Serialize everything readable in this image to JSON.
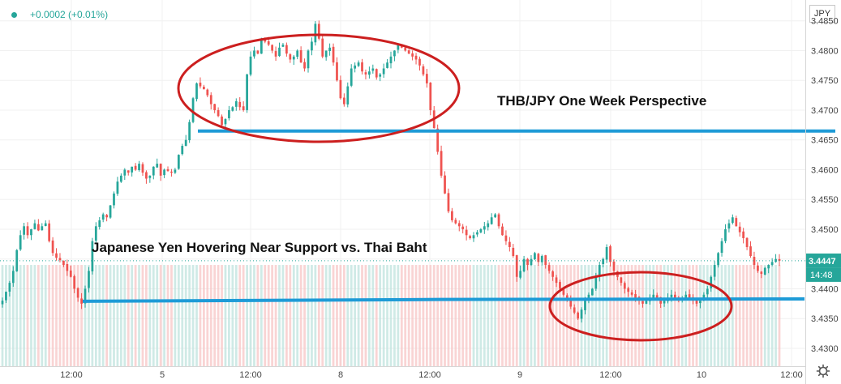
{
  "header": {
    "change_text": "+0.0002 (+0.01%)"
  },
  "axis": {
    "currency": "JPY",
    "countdown": "14:48"
  },
  "colors": {
    "up": "#26a69a",
    "down": "#ef5350",
    "support": "#1e9bd7",
    "ellipse": "#cc1f1f",
    "price_tag": "#26a69a"
  },
  "chart_data": {
    "type": "candlestick",
    "title": "THB/JPY One Week Perspective",
    "annotation": "Japanese Yen Hovering Near Support vs. Thai Baht",
    "y_ticks": [
      "3.4300",
      "3.4350",
      "3.4400",
      "3.4450",
      "3.4500",
      "3.4550",
      "3.4600",
      "3.4650",
      "3.4700",
      "3.4750",
      "3.4800",
      "3.4850"
    ],
    "ylim": [
      3.427,
      3.4885
    ],
    "x_ticks": [
      "12:00",
      "5",
      "12:00",
      "8",
      "12:00",
      "9",
      "12:00",
      "10",
      "12:00"
    ],
    "last_price": 3.4447,
    "resistance": 3.4665,
    "support": 3.4383,
    "close": [
      3.438,
      3.4395,
      3.441,
      3.443,
      3.4465,
      3.449,
      3.4505,
      3.449,
      3.45,
      3.451,
      3.4498,
      3.4505,
      3.451,
      3.448,
      3.446,
      3.4452,
      3.4448,
      3.444,
      3.443,
      3.442,
      3.44,
      3.4385,
      3.4375,
      3.44,
      3.443,
      3.448,
      3.4505,
      3.4515,
      3.4525,
      3.452,
      3.454,
      3.456,
      3.458,
      3.459,
      3.46,
      3.4595,
      3.4605,
      3.46,
      3.461,
      3.4595,
      3.4585,
      3.459,
      3.4605,
      3.461,
      3.459,
      3.46,
      3.4598,
      3.4595,
      3.46,
      3.4625,
      3.464,
      3.465,
      3.468,
      3.472,
      3.4745,
      3.474,
      3.4735,
      3.4725,
      3.471,
      3.47,
      3.469,
      3.4675,
      3.4685,
      3.47,
      3.4705,
      3.4715,
      3.4705,
      3.47,
      3.476,
      3.479,
      3.48,
      3.4795,
      3.482,
      3.4815,
      3.481,
      3.48,
      3.479,
      3.4805,
      3.481,
      3.4795,
      3.4785,
      3.479,
      3.48,
      3.478,
      3.477,
      3.48,
      3.4815,
      3.4845,
      3.482,
      3.479,
      3.48,
      3.4805,
      3.478,
      3.475,
      3.472,
      3.471,
      3.474,
      3.477,
      3.4775,
      3.478,
      3.4765,
      3.476,
      3.4765,
      3.477,
      3.4755,
      3.476,
      3.477,
      3.478,
      3.479,
      3.48,
      3.481,
      3.4805,
      3.48,
      3.4795,
      3.479,
      3.4785,
      3.4775,
      3.476,
      3.4745,
      3.47,
      3.467,
      3.463,
      3.459,
      3.456,
      3.453,
      3.4515,
      3.451,
      3.4505,
      3.45,
      3.449,
      3.4485,
      3.449,
      3.4495,
      3.45,
      3.4505,
      3.451,
      3.452,
      3.4525,
      3.4505,
      3.449,
      3.448,
      3.447,
      3.4455,
      3.442,
      3.443,
      3.445,
      3.444,
      3.445,
      3.446,
      3.4445,
      3.4455,
      3.444,
      3.443,
      3.442,
      3.441,
      3.44,
      3.439,
      3.438,
      3.437,
      3.436,
      3.435,
      3.4365,
      3.438,
      3.439,
      3.44,
      3.442,
      3.444,
      3.445,
      3.447,
      3.4445,
      3.443,
      3.442,
      3.441,
      3.44,
      3.4395,
      3.439,
      3.4385,
      3.438,
      3.4375,
      3.438,
      3.4385,
      3.439,
      3.4385,
      3.4375,
      3.438,
      3.4385,
      3.439,
      3.4385,
      3.438,
      3.4385,
      3.439,
      3.4385,
      3.438,
      3.4375,
      3.438,
      3.439,
      3.44,
      3.442,
      3.444,
      3.446,
      3.448,
      3.45,
      3.451,
      3.452,
      3.4505,
      3.4495,
      3.4485,
      3.447,
      3.4455,
      3.444,
      3.443,
      3.4425,
      3.4435,
      3.444,
      3.4445,
      3.445,
      3.4447
    ]
  }
}
